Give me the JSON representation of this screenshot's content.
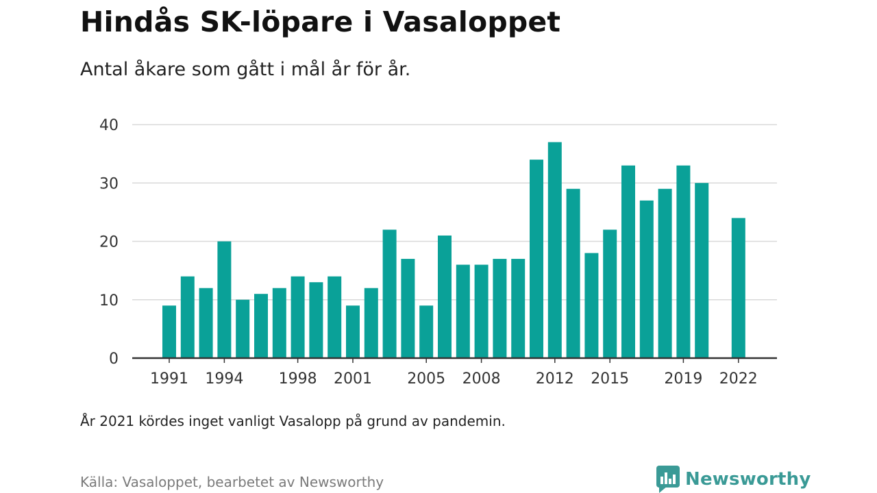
{
  "header": {
    "title": "Hindås SK-löpare i Vasaloppet",
    "subtitle": "Antal åkare som gått i mål år för år."
  },
  "footer": {
    "note": "År 2021 kördes inget vanligt Vasalopp på grund av pandemin.",
    "source": "Källa: Vasaloppet, bearbetet av Newsworthy",
    "brand": "Newsworthy"
  },
  "colors": {
    "bar": "#0aa198",
    "grid": "#d9d9d9",
    "axis": "#333333",
    "brand": "#3a9a96"
  },
  "chart_data": {
    "type": "bar",
    "title": "Hindås SK-löpare i Vasaloppet",
    "subtitle": "Antal åkare som gått i mål år för år.",
    "categories": [
      1991,
      1992,
      1993,
      1994,
      1995,
      1996,
      1997,
      1998,
      1999,
      2000,
      2001,
      2002,
      2003,
      2004,
      2005,
      2006,
      2007,
      2008,
      2009,
      2010,
      2011,
      2012,
      2013,
      2014,
      2015,
      2016,
      2017,
      2018,
      2019,
      2020,
      2021,
      2022
    ],
    "values": [
      9,
      14,
      12,
      20,
      10,
      11,
      12,
      14,
      13,
      14,
      9,
      12,
      22,
      17,
      9,
      21,
      16,
      16,
      17,
      17,
      34,
      37,
      29,
      18,
      22,
      33,
      27,
      29,
      33,
      30,
      null,
      24
    ],
    "xticks": [
      "1991",
      "1994",
      "1998",
      "2001",
      "2005",
      "2008",
      "2012",
      "2015",
      "2019",
      "2022"
    ],
    "yticks": [
      "0",
      "10",
      "20",
      "30",
      "40"
    ],
    "ylim": [
      0,
      40
    ],
    "xlabel": "",
    "ylabel": "",
    "grid": true,
    "legend": "none"
  }
}
